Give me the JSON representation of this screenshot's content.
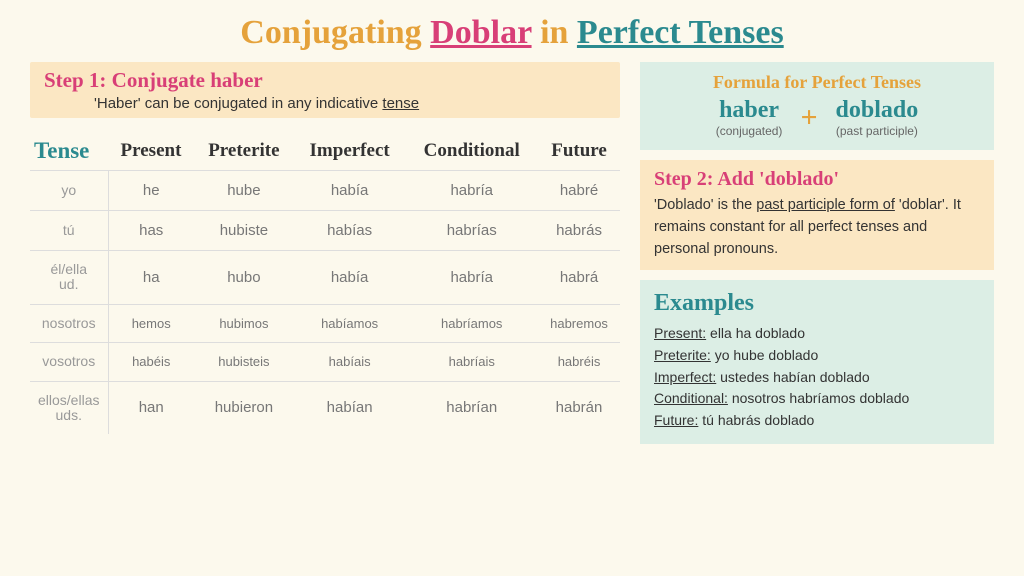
{
  "title": {
    "prefix": "Conjugating ",
    "verb": "Doblar",
    "middle": " in ",
    "tense": "Perfect Tenses"
  },
  "step1": {
    "num": "Step 1: ",
    "action": "Conjugate haber",
    "sub_pre": "'Haber' can be conjugated in any indicative ",
    "sub_u": "tense"
  },
  "table": {
    "head_tense": "Tense",
    "columns": [
      "Present",
      "Preterite",
      "Imperfect",
      "Conditional",
      "Future"
    ],
    "pronouns": [
      "yo",
      "tú",
      "él/ella\nud.",
      "nosotros",
      "vosotros",
      "ellos/ellas\nuds."
    ],
    "rows": [
      [
        "he",
        "hube",
        "había",
        "habría",
        "habré"
      ],
      [
        "has",
        "hubiste",
        "habías",
        "habrías",
        "habrás"
      ],
      [
        "ha",
        "hubo",
        "había",
        "habría",
        "habrá"
      ],
      [
        "hemos",
        "hubimos",
        "habíamos",
        "habríamos",
        "habremos"
      ],
      [
        "habéis",
        "hubisteis",
        "habíais",
        "habríais",
        "habréis"
      ],
      [
        "han",
        "hubieron",
        "habían",
        "habrían",
        "habrán"
      ]
    ]
  },
  "formula": {
    "title": "Formula for Perfect Tenses",
    "left_word": "haber",
    "left_sub": "(conjugated)",
    "plus": "+",
    "right_word": "doblado",
    "right_sub": "(past participle)"
  },
  "step2": {
    "num": "Step 2: ",
    "action": "Add 'doblado'",
    "body_pre": "'Doblado' is the ",
    "body_u": "past participle form of",
    "body_post1": " 'doblar'.  It remains constant for all perfect tenses and personal pronouns."
  },
  "examples": {
    "title": "Examples",
    "items": [
      {
        "label": "Present:",
        "text": " ella ha doblado"
      },
      {
        "label": "Preterite:",
        "text": " yo hube doblado"
      },
      {
        "label": "Imperfect:",
        "text": " ustedes habían doblado"
      },
      {
        "label": "Conditional:",
        "text": " nosotros habríamos doblado"
      },
      {
        "label": "Future:",
        "text": " tú habrás doblado"
      }
    ]
  }
}
